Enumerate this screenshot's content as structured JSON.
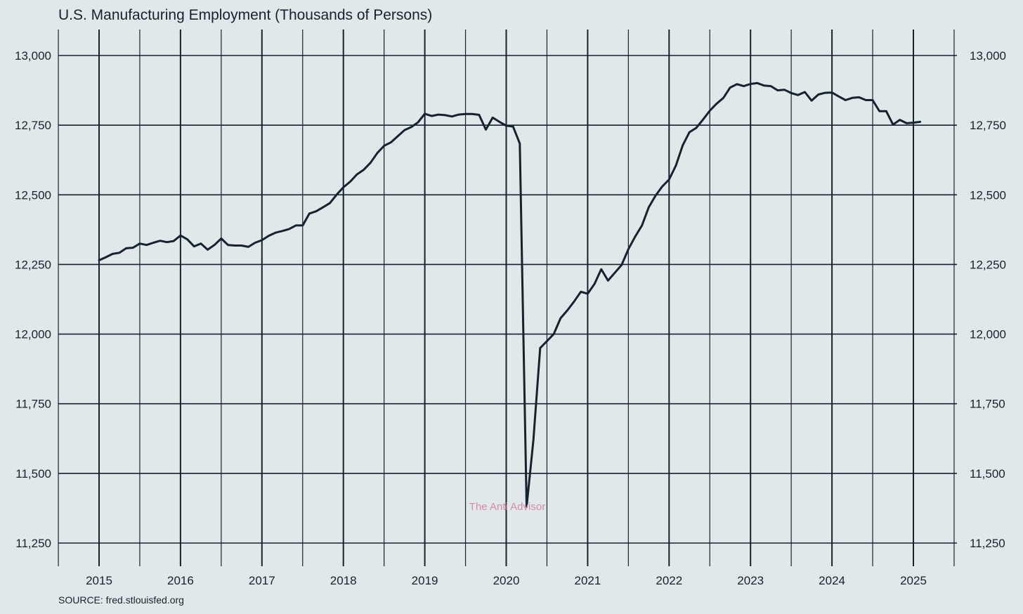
{
  "colors": {
    "background": "#e1e8ea",
    "line": "#15232f",
    "grid": "#15232f",
    "watermark": "#d88aa8"
  },
  "source": "SOURCE: fred.stlouisfed.org",
  "watermark": "The Anti Advisor",
  "chart_data": {
    "type": "line",
    "title": "U.S. Manufacturing Employment (Thousands of Persons)",
    "xlabel": "",
    "ylabel": "",
    "xlim": [
      "2014-07-01",
      "2025-07-01"
    ],
    "ylim": [
      11200,
      13100
    ],
    "y_ticks": [
      11250,
      11500,
      11750,
      12000,
      12250,
      12500,
      12750,
      13000
    ],
    "y_tick_labels": [
      "11,250",
      "11,500",
      "11,750",
      "12,000",
      "12,250",
      "12,500",
      "12,750",
      "13,000"
    ],
    "x_ticks": [
      "2015-01-01",
      "2016-01-01",
      "2017-01-01",
      "2018-01-01",
      "2019-01-01",
      "2020-01-01",
      "2021-01-01",
      "2022-01-01",
      "2023-01-01",
      "2024-01-01",
      "2025-01-01"
    ],
    "x_tick_labels": [
      "2015",
      "2016",
      "2017",
      "2018",
      "2019",
      "2020",
      "2021",
      "2022",
      "2023",
      "2024",
      "2025"
    ],
    "grid": true,
    "y_axis_both_sides": true,
    "series": [
      {
        "x": [
          "2015-01",
          "2015-02",
          "2015-03",
          "2015-04",
          "2015-05",
          "2015-06",
          "2015-07",
          "2015-08",
          "2015-09",
          "2015-10",
          "2015-11",
          "2015-12",
          "2016-01",
          "2016-02",
          "2016-03",
          "2016-04",
          "2016-05",
          "2016-06",
          "2016-07",
          "2016-08",
          "2016-09",
          "2016-10",
          "2016-11",
          "2016-12",
          "2017-01",
          "2017-02",
          "2017-03",
          "2017-04",
          "2017-05",
          "2017-06",
          "2017-07",
          "2017-08",
          "2017-09",
          "2017-10",
          "2017-11",
          "2017-12",
          "2018-01",
          "2018-02",
          "2018-03",
          "2018-04",
          "2018-05",
          "2018-06",
          "2018-07",
          "2018-08",
          "2018-09",
          "2018-10",
          "2018-11",
          "2018-12",
          "2019-01",
          "2019-02",
          "2019-03",
          "2019-04",
          "2019-05",
          "2019-06",
          "2019-07",
          "2019-08",
          "2019-09",
          "2019-10",
          "2019-11",
          "2019-12",
          "2020-01",
          "2020-02",
          "2020-03",
          "2020-04",
          "2020-05",
          "2020-06",
          "2020-07",
          "2020-08",
          "2020-09",
          "2020-10",
          "2020-11",
          "2020-12",
          "2021-01",
          "2021-02",
          "2021-03",
          "2021-04",
          "2021-05",
          "2021-06",
          "2021-07",
          "2021-08",
          "2021-09",
          "2021-10",
          "2021-11",
          "2021-12",
          "2022-01",
          "2022-02",
          "2022-03",
          "2022-04",
          "2022-05",
          "2022-06",
          "2022-07",
          "2022-08",
          "2022-09",
          "2022-10",
          "2022-11",
          "2022-12",
          "2023-01",
          "2023-02",
          "2023-03",
          "2023-04",
          "2023-05",
          "2023-06",
          "2023-07",
          "2023-08",
          "2023-09",
          "2023-10",
          "2023-11",
          "2023-12",
          "2024-01",
          "2024-02",
          "2024-03",
          "2024-04",
          "2024-05",
          "2024-06",
          "2024-07",
          "2024-08",
          "2024-09",
          "2024-10",
          "2024-11",
          "2024-12",
          "2025-01",
          "2025-02"
        ],
        "values": [
          12265,
          12276,
          12288,
          12292,
          12308,
          12310,
          12325,
          12320,
          12328,
          12335,
          12330,
          12334,
          12354,
          12340,
          12315,
          12325,
          12303,
          12320,
          12343,
          12320,
          12318,
          12318,
          12313,
          12328,
          12337,
          12353,
          12364,
          12370,
          12377,
          12390,
          12390,
          12433,
          12441,
          12455,
          12470,
          12500,
          12527,
          12547,
          12573,
          12590,
          12615,
          12650,
          12676,
          12688,
          12710,
          12732,
          12743,
          12760,
          12791,
          12783,
          12788,
          12786,
          12781,
          12788,
          12790,
          12790,
          12787,
          12734,
          12777,
          12762,
          12748,
          12745,
          12684,
          11380,
          11618,
          11950,
          11975,
          12000,
          12057,
          12085,
          12117,
          12152,
          12145,
          12180,
          12233,
          12192,
          12220,
          12248,
          12305,
          12350,
          12390,
          12455,
          12497,
          12530,
          12555,
          12605,
          12677,
          12725,
          12740,
          12770,
          12802,
          12827,
          12848,
          12885,
          12897,
          12890,
          12898,
          12901,
          12892,
          12890,
          12875,
          12877,
          12865,
          12858,
          12869,
          12838,
          12860,
          12866,
          12867,
          12853,
          12840,
          12848,
          12850,
          12840,
          12840,
          12800,
          12800,
          12752,
          12769,
          12757,
          12759,
          12762
        ]
      }
    ]
  }
}
